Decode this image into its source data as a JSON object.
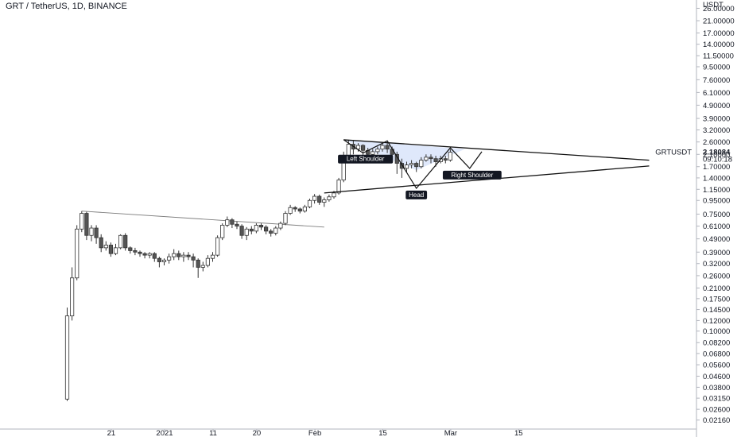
{
  "header": {
    "title": "GRT / TetherUS, 1D, BINANCE"
  },
  "price_scale": {
    "currency": "USDT",
    "symbol_label": "GRTUSDT",
    "last_price": "2.18084",
    "countdown": "09:10:18"
  },
  "annotations": {
    "left_shoulder": "Left Shoulder",
    "head": "Head",
    "right_shoulder": "Right Shoulder"
  },
  "colors": {
    "up_body": "#ffffff",
    "down_body": "#555555",
    "wick": "#333333",
    "triangle_fill": "#dbe6fb",
    "tag_bg": "#131722"
  },
  "chart_data": {
    "type": "candlestick",
    "title": "GRT / TetherUS, 1D, BINANCE",
    "yscale": "log",
    "ylim": [
      0.0185,
      30
    ],
    "x_ticks": [
      {
        "label": "21",
        "day": 9
      },
      {
        "label": "2021",
        "day": 20
      },
      {
        "label": "11",
        "day": 30
      },
      {
        "label": "20",
        "day": 39
      },
      {
        "label": "Feb",
        "day": 51
      },
      {
        "label": "15",
        "day": 65
      },
      {
        "label": "Mar",
        "day": 79
      },
      {
        "label": "15",
        "day": 93
      }
    ],
    "y_ticks": [
      "0.02160",
      "0.02600",
      "0.03150",
      "0.03800",
      "0.04600",
      "0.05600",
      "0.06800",
      "0.08200",
      "0.10000",
      "0.12000",
      "0.14500",
      "0.17500",
      "0.21000",
      "0.26000",
      "0.32000",
      "0.39000",
      "0.49000",
      "0.61000",
      "0.75000",
      "0.95000",
      "1.15000",
      "1.40000",
      "1.70000",
      "2.10000",
      "2.60000",
      "3.20000",
      "3.90000",
      "4.90000",
      "6.10000",
      "7.60000",
      "9.50000",
      "11.50000",
      "14.00000",
      "17.00000",
      "21.00000",
      "26.00000"
    ],
    "candles": [
      [
        0.031,
        0.13,
        0.03,
        0.15
      ],
      [
        0.13,
        0.25,
        0.12,
        0.3
      ],
      [
        0.25,
        0.58,
        0.24,
        0.62
      ],
      [
        0.58,
        0.76,
        0.55,
        0.79
      ],
      [
        0.76,
        0.52,
        0.48,
        0.78
      ],
      [
        0.52,
        0.59,
        0.47,
        0.62
      ],
      [
        0.59,
        0.5,
        0.45,
        0.62
      ],
      [
        0.5,
        0.42,
        0.39,
        0.53
      ],
      [
        0.42,
        0.44,
        0.4,
        0.47
      ],
      [
        0.44,
        0.38,
        0.36,
        0.46
      ],
      [
        0.38,
        0.42,
        0.37,
        0.45
      ],
      [
        0.42,
        0.52,
        0.41,
        0.53
      ],
      [
        0.52,
        0.42,
        0.4,
        0.54
      ],
      [
        0.42,
        0.4,
        0.38,
        0.43
      ],
      [
        0.4,
        0.39,
        0.37,
        0.42
      ],
      [
        0.39,
        0.38,
        0.36,
        0.4
      ],
      [
        0.38,
        0.37,
        0.35,
        0.39
      ],
      [
        0.37,
        0.38,
        0.35,
        0.39
      ],
      [
        0.38,
        0.35,
        0.33,
        0.39
      ],
      [
        0.35,
        0.33,
        0.3,
        0.36
      ],
      [
        0.33,
        0.34,
        0.31,
        0.35
      ],
      [
        0.34,
        0.36,
        0.32,
        0.38
      ],
      [
        0.36,
        0.38,
        0.34,
        0.41
      ],
      [
        0.38,
        0.36,
        0.34,
        0.4
      ],
      [
        0.36,
        0.37,
        0.33,
        0.39
      ],
      [
        0.37,
        0.36,
        0.34,
        0.39
      ],
      [
        0.36,
        0.34,
        0.3,
        0.38
      ],
      [
        0.34,
        0.3,
        0.25,
        0.35
      ],
      [
        0.3,
        0.31,
        0.28,
        0.33
      ],
      [
        0.31,
        0.35,
        0.3,
        0.37
      ],
      [
        0.35,
        0.37,
        0.33,
        0.39
      ],
      [
        0.37,
        0.5,
        0.36,
        0.52
      ],
      [
        0.5,
        0.62,
        0.48,
        0.64
      ],
      [
        0.62,
        0.68,
        0.6,
        0.72
      ],
      [
        0.68,
        0.63,
        0.59,
        0.7
      ],
      [
        0.63,
        0.61,
        0.58,
        0.66
      ],
      [
        0.61,
        0.52,
        0.49,
        0.63
      ],
      [
        0.52,
        0.58,
        0.48,
        0.6
      ],
      [
        0.58,
        0.56,
        0.53,
        0.61
      ],
      [
        0.56,
        0.62,
        0.54,
        0.64
      ],
      [
        0.62,
        0.6,
        0.57,
        0.64
      ],
      [
        0.6,
        0.56,
        0.53,
        0.62
      ],
      [
        0.56,
        0.54,
        0.51,
        0.58
      ],
      [
        0.54,
        0.59,
        0.52,
        0.61
      ],
      [
        0.59,
        0.64,
        0.57,
        0.66
      ],
      [
        0.64,
        0.76,
        0.62,
        0.79
      ],
      [
        0.76,
        0.84,
        0.74,
        0.88
      ],
      [
        0.84,
        0.82,
        0.78,
        0.86
      ],
      [
        0.82,
        0.79,
        0.76,
        0.84
      ],
      [
        0.79,
        0.85,
        0.77,
        0.88
      ],
      [
        0.85,
        0.95,
        0.83,
        0.98
      ],
      [
        0.95,
        1.02,
        0.9,
        1.06
      ],
      [
        1.02,
        0.92,
        0.88,
        1.05
      ],
      [
        0.92,
        0.96,
        0.85,
        1.0
      ],
      [
        0.96,
        1.01,
        0.93,
        1.05
      ],
      [
        1.01,
        1.08,
        0.98,
        1.12
      ],
      [
        1.08,
        1.35,
        1.05,
        1.4
      ],
      [
        1.35,
        2.05,
        1.3,
        2.2
      ],
      [
        2.05,
        2.5,
        1.95,
        2.7
      ],
      [
        2.5,
        2.3,
        2.1,
        2.65
      ],
      [
        2.3,
        2.45,
        2.2,
        2.55
      ],
      [
        2.45,
        2.25,
        2.05,
        2.5
      ],
      [
        2.25,
        2.1,
        1.9,
        2.35
      ],
      [
        2.1,
        2.2,
        2.0,
        2.3
      ],
      [
        2.2,
        2.3,
        2.1,
        2.4
      ],
      [
        2.3,
        2.45,
        2.2,
        2.55
      ],
      [
        2.45,
        2.3,
        2.15,
        2.55
      ],
      [
        2.3,
        2.1,
        1.9,
        2.4
      ],
      [
        2.1,
        1.8,
        1.5,
        2.2
      ],
      [
        1.8,
        1.65,
        1.4,
        1.95
      ],
      [
        1.65,
        1.75,
        1.55,
        1.85
      ],
      [
        1.75,
        1.8,
        1.65,
        1.9
      ],
      [
        1.8,
        1.7,
        1.55,
        1.85
      ],
      [
        1.7,
        1.9,
        1.65,
        2.0
      ],
      [
        1.9,
        2.0,
        1.85,
        2.1
      ],
      [
        2.0,
        1.95,
        1.8,
        2.1
      ],
      [
        1.95,
        1.85,
        1.7,
        2.05
      ],
      [
        1.85,
        1.95,
        1.8,
        2.05
      ],
      [
        1.95,
        1.9,
        1.8,
        2.05
      ],
      [
        1.9,
        2.18,
        1.85,
        2.3
      ]
    ]
  }
}
